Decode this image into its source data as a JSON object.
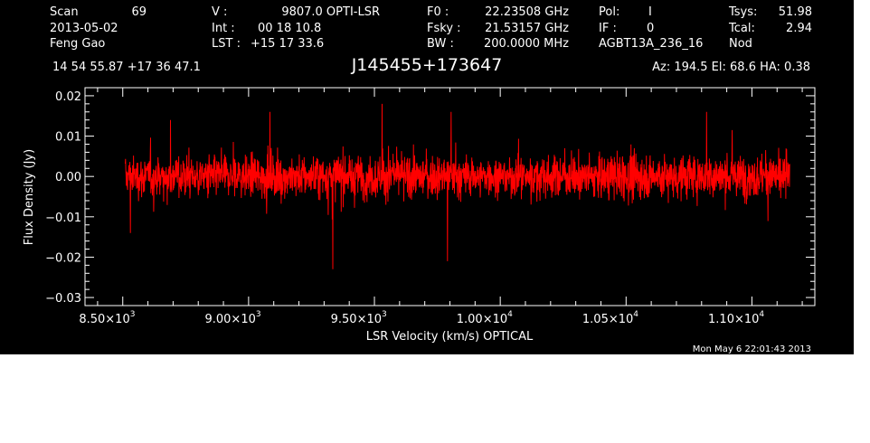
{
  "header": {
    "col1": [
      "Scan",
      "2013-05-02",
      "Feng Gao"
    ],
    "scan_number": "69",
    "col2_labels": [
      "V    :",
      "Int   :",
      "LST :"
    ],
    "col2_values": [
      "9807.0 OPTI-LSR",
      "00 18 10.8",
      "+15 17 33.6"
    ],
    "col3_labels": [
      "F0     :",
      "Fsky :",
      "BW    :"
    ],
    "col3_values": [
      "22.23508 GHz",
      "21.53157 GHz",
      "200.0000 MHz"
    ],
    "col4_labels": [
      "Pol:",
      "IF :"
    ],
    "col4_values": [
      "I",
      "0"
    ],
    "project": "AGBT13A_236_16",
    "col5_labels": [
      "Tsys:",
      "Tcal:"
    ],
    "col5_values": [
      "51.98",
      "2.94"
    ],
    "proc": "Nod",
    "coords": "14 54 55.87  +17 36 47.1",
    "source": "J145455+173647",
    "az_el_ha": "Az: 194.5   El:  68.6   HA:  0.38"
  },
  "timestamp": "Mon May  6 22:01:43 2013",
  "colors": {
    "background": "#000000",
    "axes": "#ffffff",
    "trace": "#ff0000"
  },
  "chart_data": {
    "type": "line",
    "xlabel": "LSR Velocity (km/s) OPTICAL",
    "ylabel": "Flux Density (Jy)",
    "xlim": [
      8350,
      11250
    ],
    "ylim": [
      -0.032,
      0.022
    ],
    "x_ticks": [
      {
        "value": 8500,
        "mant": "8.50",
        "exp": "3"
      },
      {
        "value": 9000,
        "mant": "9.00",
        "exp": "3"
      },
      {
        "value": 9500,
        "mant": "9.50",
        "exp": "3"
      },
      {
        "value": 10000,
        "mant": "1.00",
        "exp": "4"
      },
      {
        "value": 10500,
        "mant": "1.05",
        "exp": "4"
      },
      {
        "value": 11000,
        "mant": "1.10",
        "exp": "4"
      }
    ],
    "y_ticks": [
      {
        "value": 0.02,
        "label": "0.02"
      },
      {
        "value": 0.01,
        "label": "0.01"
      },
      {
        "value": 0.0,
        "label": "0.00"
      },
      {
        "value": -0.01,
        "label": "−0.01"
      },
      {
        "value": -0.02,
        "label": "−0.02"
      },
      {
        "value": -0.03,
        "label": "−0.03"
      }
    ],
    "grid": false,
    "series": [
      {
        "x_start": 8510,
        "x_end": 11150,
        "noise_envelope_sigma": [
          [
            8510,
            0.0045
          ],
          [
            9000,
            0.0048
          ],
          [
            9500,
            0.005
          ],
          [
            10000,
            0.0042
          ],
          [
            10500,
            0.0052
          ],
          [
            11150,
            0.0048
          ]
        ],
        "notable_points": [
          [
            8530,
            -0.014
          ],
          [
            8690,
            0.014
          ],
          [
            9085,
            0.016
          ],
          [
            9335,
            -0.023
          ],
          [
            9530,
            0.018
          ],
          [
            9790,
            -0.021
          ],
          [
            9805,
            0.016
          ],
          [
            10820,
            0.016
          ]
        ]
      }
    ]
  }
}
